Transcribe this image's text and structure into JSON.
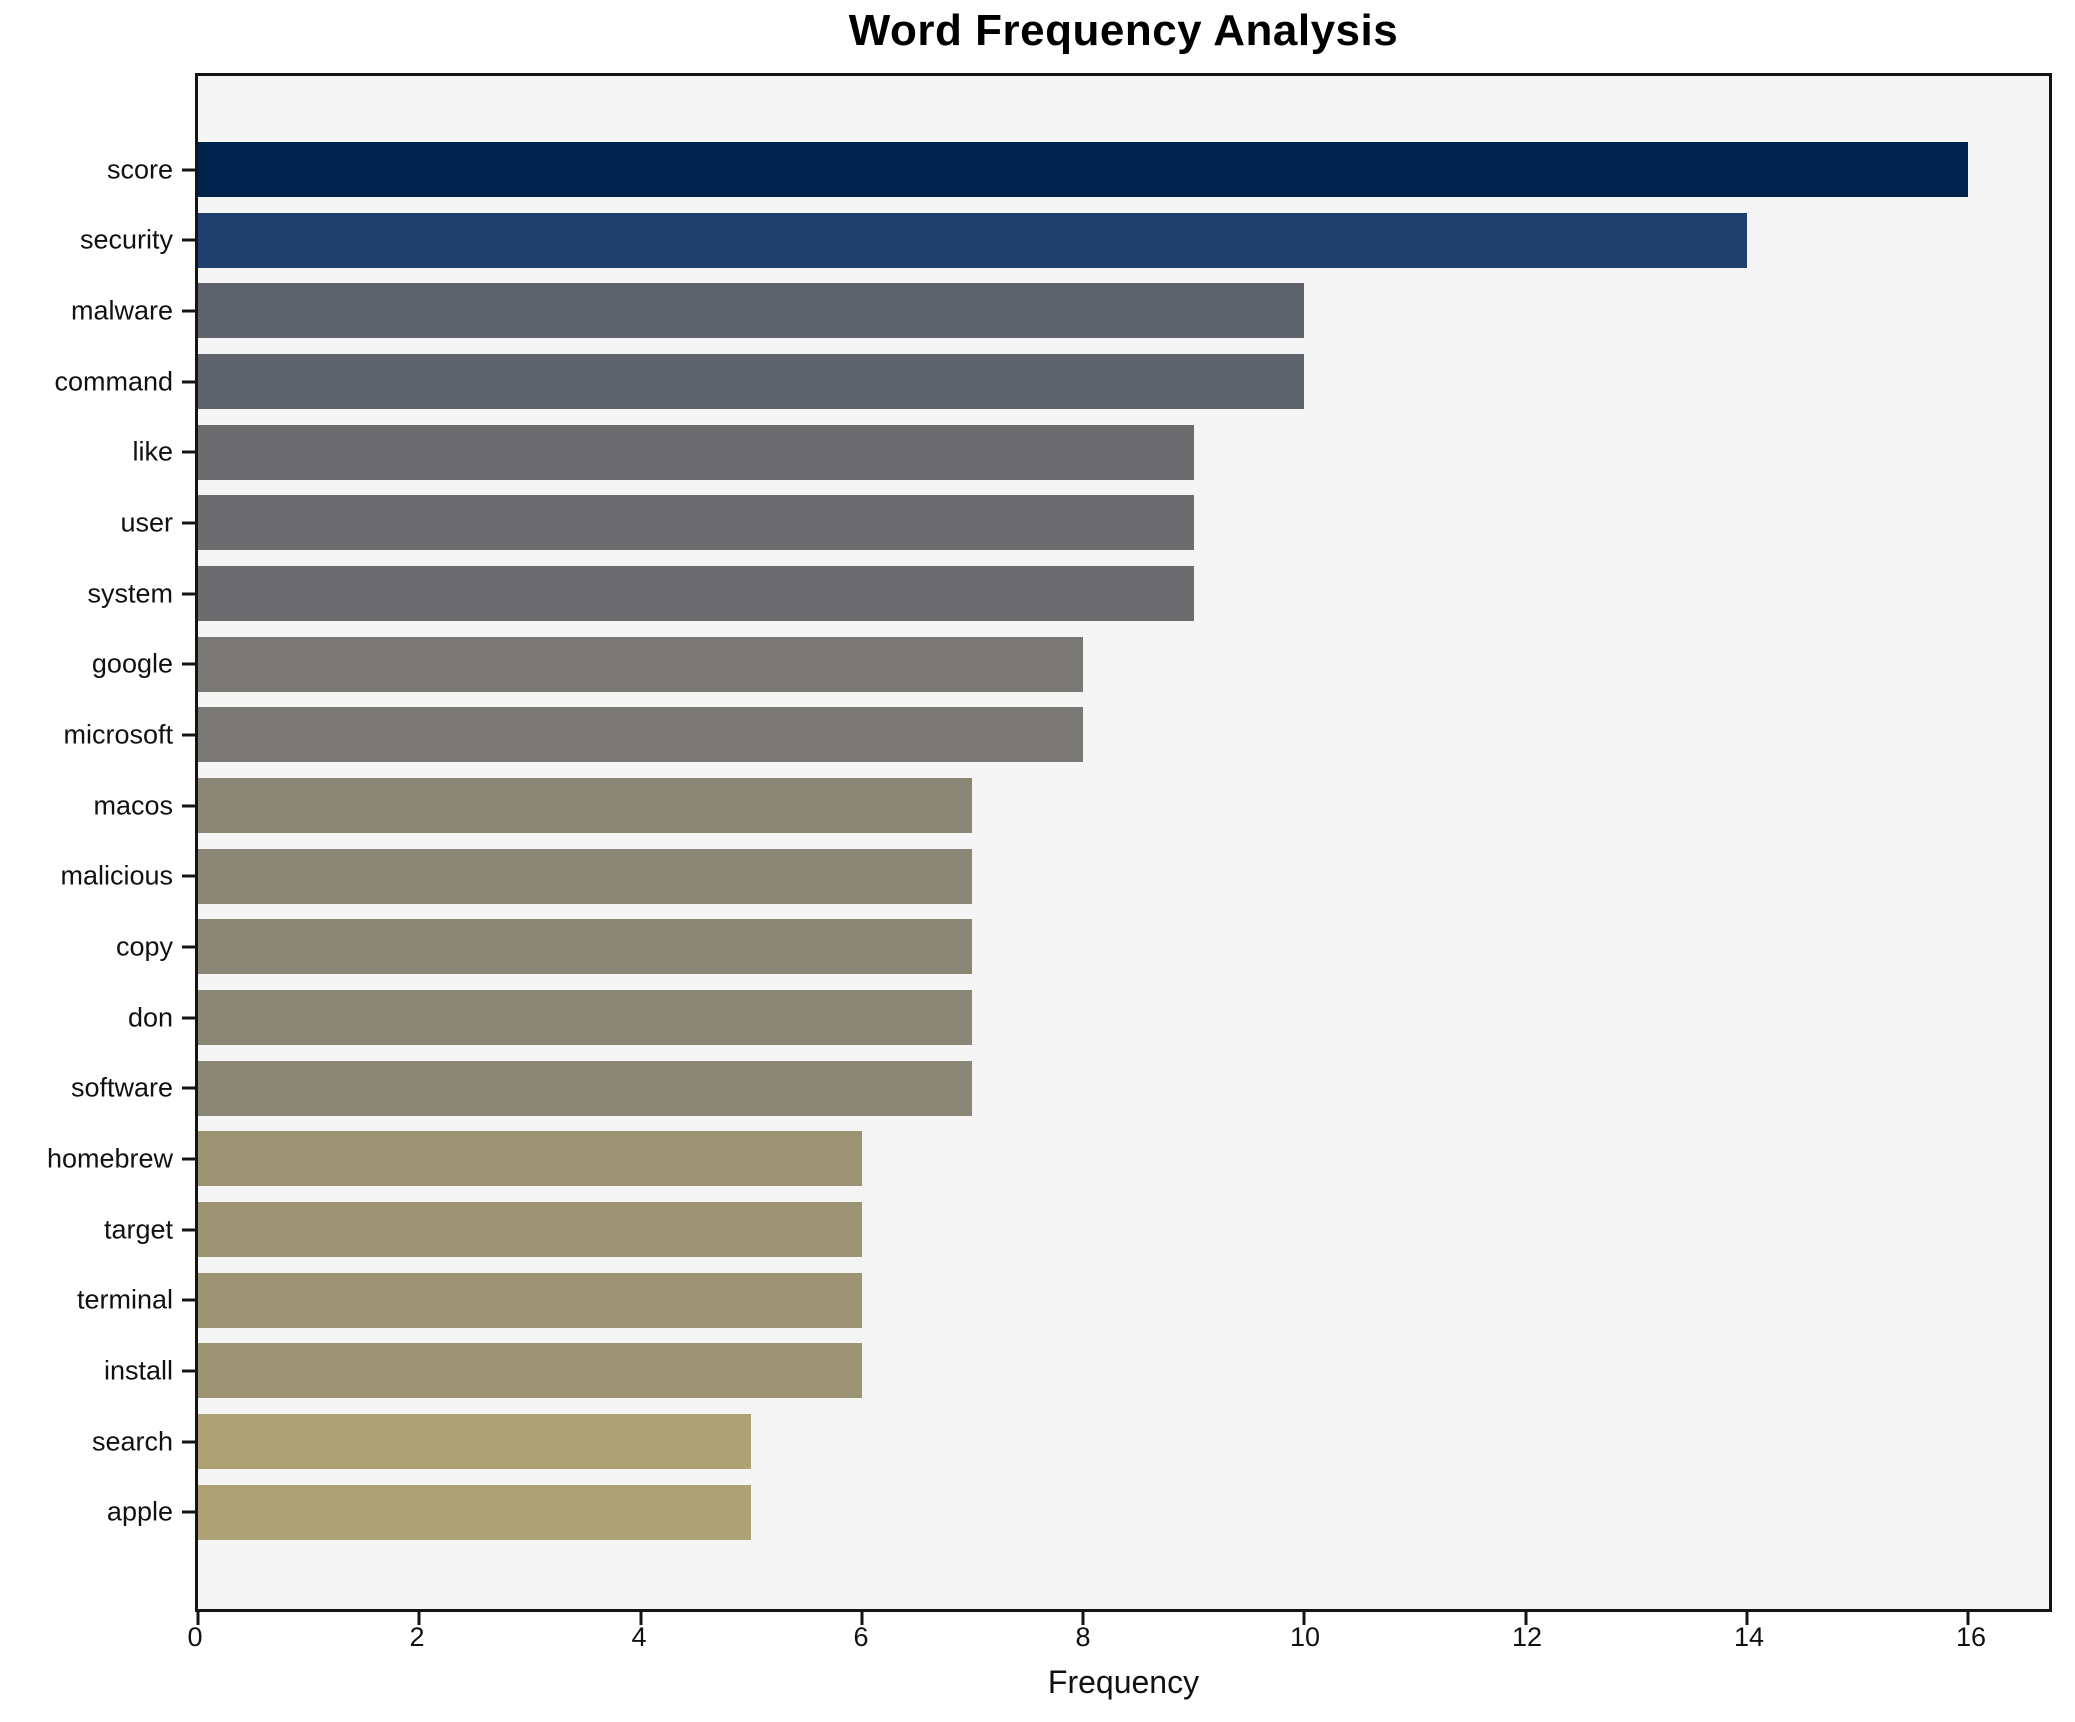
{
  "chart_data": {
    "type": "bar",
    "orientation": "horizontal",
    "title": "Word Frequency Analysis",
    "xlabel": "Frequency",
    "ylabel": "",
    "categories": [
      "score",
      "security",
      "malware",
      "command",
      "like",
      "user",
      "system",
      "google",
      "microsoft",
      "macos",
      "malicious",
      "copy",
      "don",
      "software",
      "homebrew",
      "target",
      "terminal",
      "install",
      "search",
      "apple"
    ],
    "values": [
      16,
      14,
      10,
      10,
      9,
      9,
      9,
      8,
      8,
      7,
      7,
      7,
      7,
      7,
      6,
      6,
      6,
      6,
      5,
      5
    ],
    "bar_colors": [
      "#00234e",
      "#213f6c",
      "#5d626b",
      "#5d626b",
      "#6c6c6e",
      "#6c6c6e",
      "#6c6c6e",
      "#7a7874",
      "#7a7874",
      "#8a8776",
      "#8a8776",
      "#8a8776",
      "#8a8776",
      "#8a8776",
      "#9b9372",
      "#9b9372",
      "#9b9372",
      "#9b9372",
      "#ada275",
      "#ada275"
    ],
    "colormap": "cividis",
    "xticks": [
      0,
      2,
      4,
      6,
      8,
      10,
      12,
      14,
      16
    ],
    "xlim": [
      0,
      16.73
    ],
    "grid": false,
    "legend": null,
    "plot_background": "#f5f5f6",
    "axis_color": "#141414"
  }
}
